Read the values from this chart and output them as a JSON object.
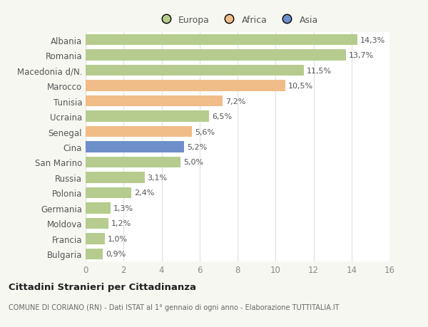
{
  "categories": [
    "Albania",
    "Romania",
    "Macedonia d/N.",
    "Marocco",
    "Tunisia",
    "Ucraina",
    "Senegal",
    "Cina",
    "San Marino",
    "Russia",
    "Polonia",
    "Germania",
    "Moldova",
    "Francia",
    "Bulgaria"
  ],
  "values": [
    14.3,
    13.7,
    11.5,
    10.5,
    7.2,
    6.5,
    5.6,
    5.2,
    5.0,
    3.1,
    2.4,
    1.3,
    1.2,
    1.0,
    0.9
  ],
  "labels": [
    "14,3%",
    "13,7%",
    "11,5%",
    "10,5%",
    "7,2%",
    "6,5%",
    "5,6%",
    "5,2%",
    "5,0%",
    "3,1%",
    "2,4%",
    "1,3%",
    "1,2%",
    "1,0%",
    "0,9%"
  ],
  "continent": [
    "Europa",
    "Europa",
    "Europa",
    "Africa",
    "Africa",
    "Europa",
    "Africa",
    "Asia",
    "Europa",
    "Europa",
    "Europa",
    "Europa",
    "Europa",
    "Europa",
    "Europa"
  ],
  "colors": {
    "Europa": "#b5cc8e",
    "Africa": "#f0bc87",
    "Asia": "#6e8fc9"
  },
  "bg_color": "#f7f7f2",
  "plot_bg_color": "#ffffff",
  "title": "Cittadini Stranieri per Cittadinanza",
  "subtitle": "COMUNE DI CORIANO (RN) - Dati ISTAT al 1° gennaio di ogni anno - Elaborazione TUTTITALIA.IT",
  "xlim": [
    0,
    16
  ],
  "xticks": [
    0,
    2,
    4,
    6,
    8,
    10,
    12,
    14,
    16
  ],
  "bar_height": 0.72,
  "label_fontsize": 8,
  "ytick_fontsize": 8.5,
  "xtick_fontsize": 8.5
}
